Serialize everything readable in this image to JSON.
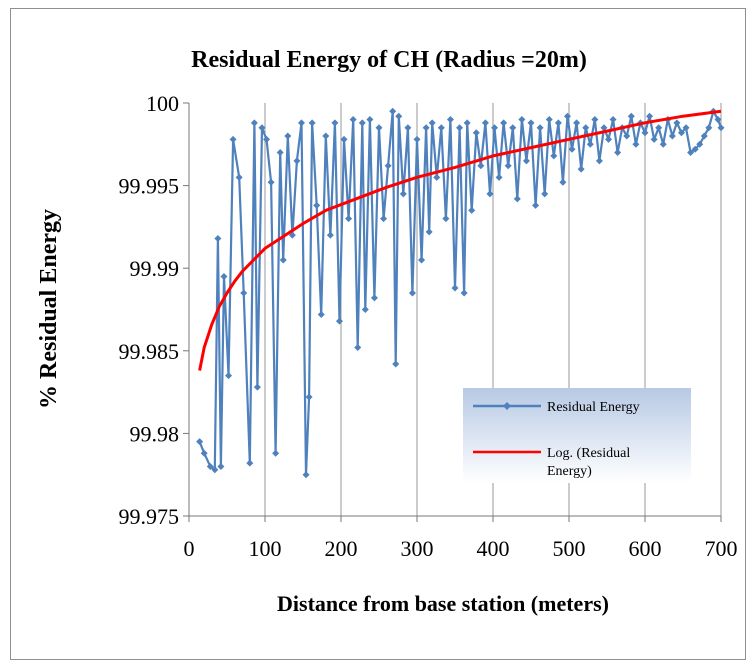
{
  "chart_data": {
    "type": "line",
    "title": "Residual Energy of CH (Radius =20m)",
    "xlabel": "Distance from base station (meters)",
    "ylabel": "% Residual Energy",
    "xlim": [
      0,
      700
    ],
    "ylim": [
      99.975,
      100
    ],
    "x_ticks": [
      "0",
      "100",
      "200",
      "300",
      "400",
      "500",
      "600",
      "700"
    ],
    "y_ticks": [
      "99.975",
      "99.98",
      "99.985",
      "99.99",
      "99.995",
      "100"
    ],
    "grid": "vertical",
    "legend_position": "right",
    "series": [
      {
        "name": "Residual Energy",
        "style": "line-markers",
        "color": "#4f81bd",
        "x": [
          14,
          20,
          28,
          34,
          38,
          42,
          46,
          52,
          58,
          66,
          72,
          80,
          86,
          90,
          96,
          102,
          108,
          114,
          120,
          124,
          130,
          136,
          142,
          148,
          154,
          158,
          162,
          168,
          174,
          180,
          186,
          192,
          198,
          204,
          210,
          216,
          222,
          228,
          232,
          238,
          244,
          250,
          256,
          262,
          268,
          272,
          276,
          282,
          288,
          294,
          300,
          306,
          312,
          316,
          320,
          326,
          332,
          338,
          344,
          350,
          356,
          362,
          366,
          372,
          378,
          384,
          390,
          396,
          402,
          408,
          414,
          420,
          426,
          432,
          438,
          444,
          450,
          456,
          462,
          468,
          474,
          480,
          486,
          492,
          498,
          504,
          510,
          516,
          522,
          528,
          534,
          540,
          546,
          552,
          558,
          564,
          570,
          576,
          582,
          588,
          594,
          600,
          606,
          612,
          618,
          624,
          630,
          636,
          642,
          648,
          654,
          660,
          666,
          672,
          678,
          684,
          690,
          696,
          700
        ],
        "values": [
          99.9795,
          99.9788,
          99.978,
          99.9778,
          99.9918,
          99.978,
          99.9895,
          99.9835,
          99.9978,
          99.9955,
          99.9885,
          99.9782,
          99.9988,
          99.9828,
          99.9985,
          99.9978,
          99.9952,
          99.9788,
          99.997,
          99.9905,
          99.998,
          99.992,
          99.9965,
          99.9988,
          99.9775,
          99.9822,
          99.9988,
          99.9938,
          99.9872,
          99.998,
          99.992,
          99.9988,
          99.9868,
          99.9978,
          99.993,
          99.999,
          99.9852,
          99.9988,
          99.9875,
          99.999,
          99.9882,
          99.9985,
          99.993,
          99.9962,
          99.9995,
          99.9842,
          99.9992,
          99.9945,
          99.9985,
          99.9885,
          99.9978,
          99.9905,
          99.9985,
          99.9922,
          99.9988,
          99.9955,
          99.9985,
          99.993,
          99.999,
          99.9888,
          99.9985,
          99.9885,
          99.9988,
          99.9935,
          99.9982,
          99.9962,
          99.9988,
          99.9945,
          99.9985,
          99.9955,
          99.9988,
          99.9962,
          99.9985,
          99.9942,
          99.999,
          99.9965,
          99.9988,
          99.9938,
          99.9985,
          99.9945,
          99.999,
          99.9968,
          99.9988,
          99.9952,
          99.9992,
          99.9972,
          99.9988,
          99.996,
          99.9985,
          99.9975,
          99.999,
          99.9965,
          99.9985,
          99.9978,
          99.999,
          99.997,
          99.9985,
          99.998,
          99.9992,
          99.9975,
          99.9988,
          99.9982,
          99.9992,
          99.9978,
          99.9985,
          99.9975,
          99.999,
          99.998,
          99.9988,
          99.9982,
          99.9985,
          99.997,
          99.9972,
          99.9975,
          99.998,
          99.9985,
          99.9995,
          99.999,
          99.9985
        ]
      },
      {
        "name": "Log. (Residual Energy)",
        "style": "line",
        "color": "#ff0000",
        "x": [
          14,
          20,
          30,
          40,
          50,
          60,
          70,
          85,
          100,
          120,
          150,
          180,
          220,
          260,
          300,
          350,
          400,
          450,
          500,
          550,
          600,
          650,
          700
        ],
        "values": [
          99.9838,
          99.9852,
          99.9866,
          99.9877,
          99.9885,
          99.9892,
          99.9898,
          99.9905,
          99.9912,
          99.9918,
          99.9927,
          99.9935,
          99.9942,
          99.9949,
          99.9955,
          99.9961,
          99.9968,
          99.9973,
          99.9978,
          99.9983,
          99.9988,
          99.9992,
          99.9995
        ]
      }
    ]
  }
}
